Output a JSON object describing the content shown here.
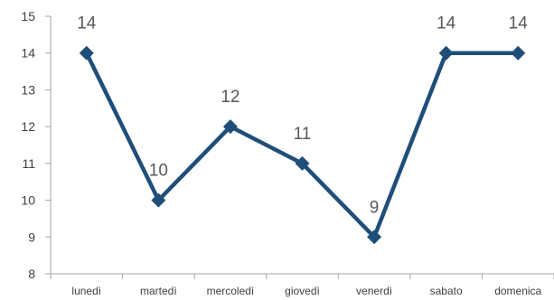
{
  "chart_data": {
    "type": "line",
    "title": "",
    "xlabel": "",
    "ylabel": "",
    "categories": [
      "lunedì",
      "martedì",
      "mercoledì",
      "giovedì",
      "venerdì",
      "sabato",
      "domenica"
    ],
    "series": [
      {
        "values": [
          14,
          10,
          12,
          11,
          9,
          14,
          14
        ],
        "color": "#1F4E79"
      }
    ],
    "ylim": [
      8,
      15
    ],
    "yticks": [
      8,
      9,
      10,
      11,
      12,
      13,
      14,
      15
    ],
    "marker": "diamond",
    "data_labels": true,
    "grid": false,
    "legend": "none",
    "colors": {
      "axis": "#A6A6A6",
      "text": "#404040",
      "label": "#595959"
    }
  }
}
